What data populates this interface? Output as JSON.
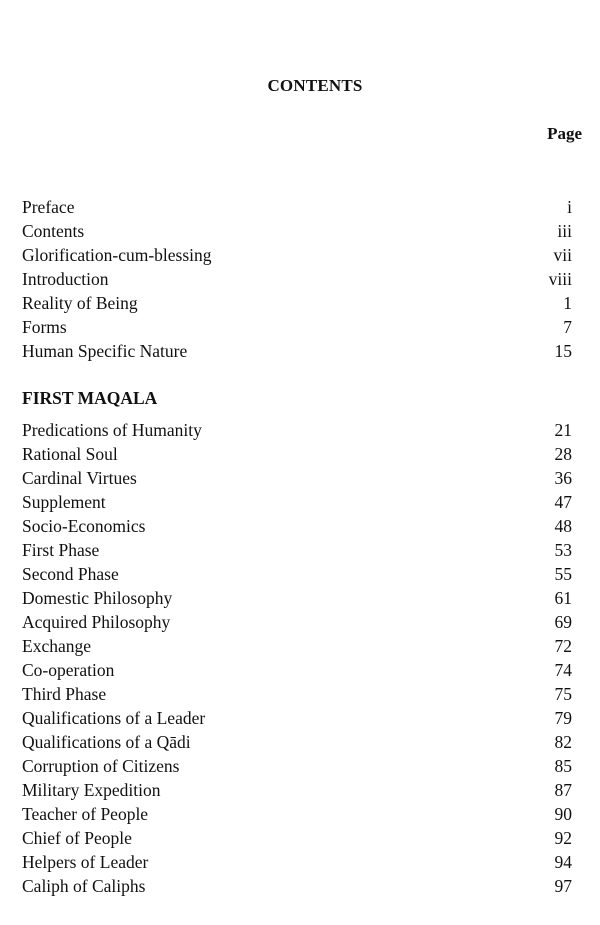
{
  "title": "CONTENTS",
  "page_header": "Page",
  "front_matter": [
    {
      "label": "Preface",
      "page": "i"
    },
    {
      "label": "Contents",
      "page": "iii"
    },
    {
      "label": "Glorification-cum-blessing",
      "page": "vii"
    },
    {
      "label": "Introduction",
      "page": "viii"
    },
    {
      "label": "Reality of Being",
      "page": "1"
    },
    {
      "label": "Forms",
      "page": "7"
    },
    {
      "label": "Human Specific Nature",
      "page": "15"
    }
  ],
  "section": {
    "heading": "FIRST MAQALA",
    "entries": [
      {
        "label": "Predications of Humanity",
        "page": "21"
      },
      {
        "label": "Rational Soul",
        "page": "28"
      },
      {
        "label": "Cardinal Virtues",
        "page": "36"
      },
      {
        "label": "Supplement",
        "page": "47"
      },
      {
        "label": "Socio-Economics",
        "page": "48"
      },
      {
        "label": "First Phase",
        "page": "53"
      },
      {
        "label": "Second Phase",
        "page": "55"
      },
      {
        "label": "Domestic Philosophy",
        "page": "61"
      },
      {
        "label": "Acquired Philosophy",
        "page": "69"
      },
      {
        "label": "Exchange",
        "page": "72"
      },
      {
        "label": "Co-operation",
        "page": "74"
      },
      {
        "label": "Third Phase",
        "page": "75"
      },
      {
        "label": "Qualifications of a Leader",
        "page": "79"
      },
      {
        "label": "Qualifications of a Qādi",
        "page": "82"
      },
      {
        "label": "Corruption of Citizens",
        "page": "85"
      },
      {
        "label": "Military Expedition",
        "page": "87"
      },
      {
        "label": "Teacher of People",
        "page": "90"
      },
      {
        "label": "Chief of People",
        "page": "92"
      },
      {
        "label": "Helpers of Leader",
        "page": "94"
      },
      {
        "label": "Caliph of Caliphs",
        "page": "97"
      }
    ]
  }
}
